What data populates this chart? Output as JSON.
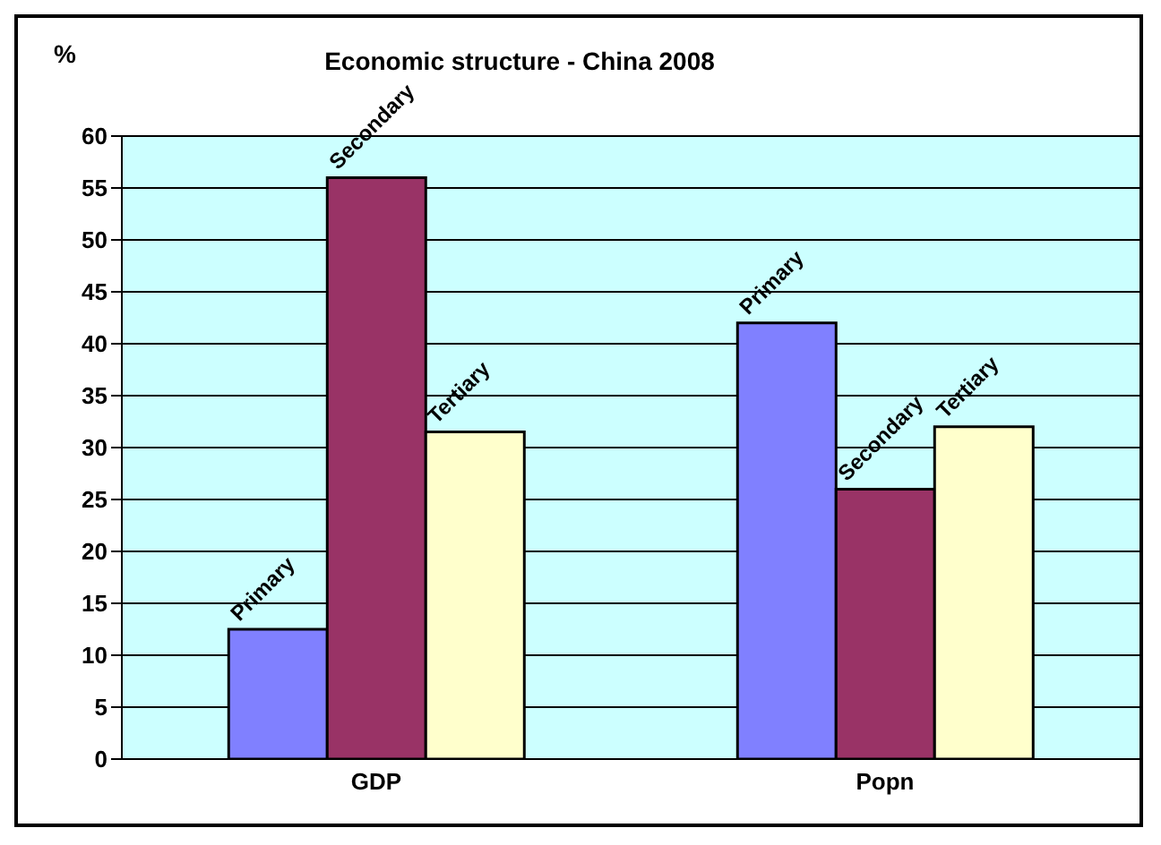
{
  "chart_data": {
    "type": "bar",
    "title": "Economic structure - China 2008",
    "ylabel": "%",
    "categories": [
      "GDP",
      "Popn"
    ],
    "series": [
      {
        "name": "Primary",
        "color": "#8080ff",
        "values": [
          12.5,
          42
        ]
      },
      {
        "name": "Secondary",
        "color": "#993366",
        "values": [
          56,
          26
        ]
      },
      {
        "name": "Tertiary",
        "color": "#ffffcc",
        "values": [
          31.5,
          32
        ]
      }
    ],
    "ylim": [
      0,
      60
    ],
    "yticks": [
      0,
      5,
      10,
      15,
      20,
      25,
      30,
      35,
      40,
      45,
      50,
      55,
      60
    ],
    "grid": "y",
    "legend": false
  }
}
